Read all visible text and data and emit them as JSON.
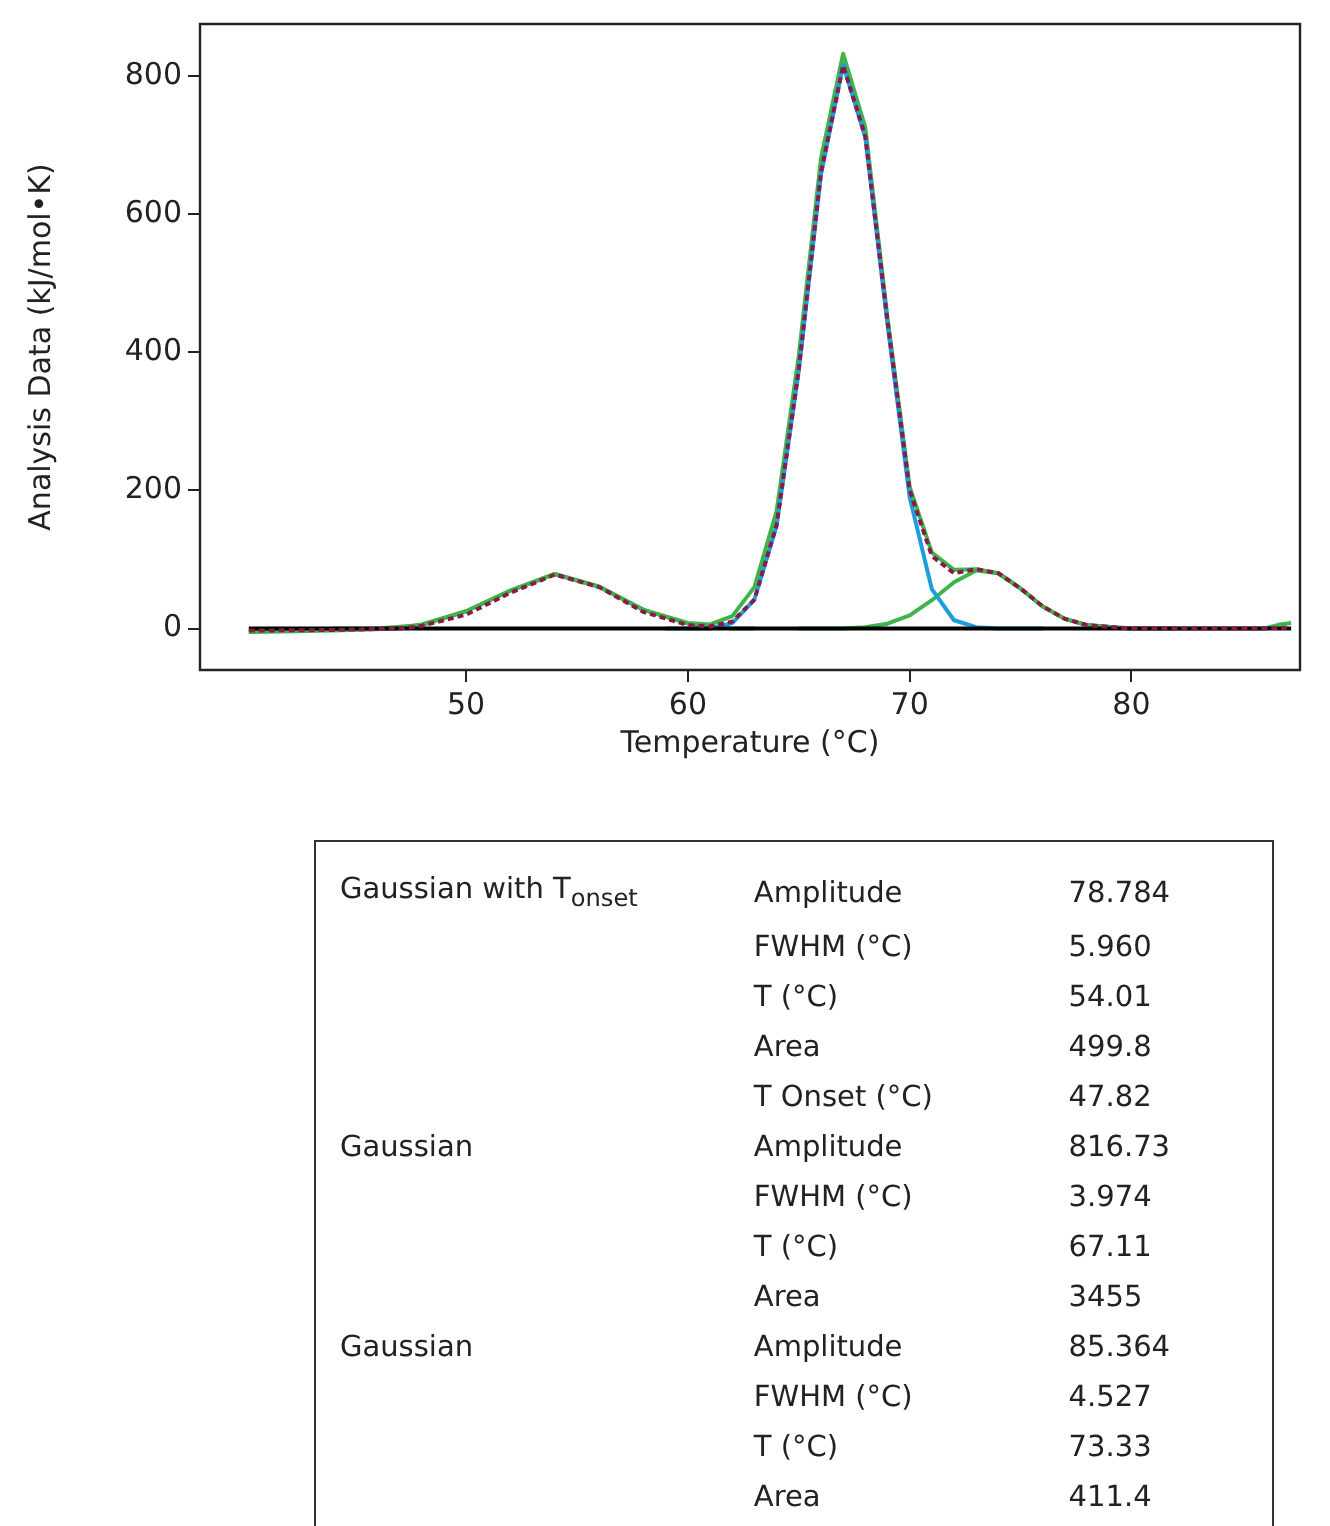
{
  "chart_data": [
    {
      "type": "line",
      "xlabel": "Temperature (°C)",
      "ylabel": "Analysis Data (kJ/mol•K)",
      "xlim": [
        38,
        87.6
      ],
      "ylim": [
        -60,
        875
      ],
      "xticks": [
        50,
        60,
        70,
        80
      ],
      "yticks": [
        0,
        200,
        400,
        600,
        800
      ],
      "marker": "none",
      "line_style": "solid",
      "series": [
        {
          "color": "#000000",
          "x": [
            40.2,
            87.2
          ],
          "values": [
            0,
            0
          ]
        },
        {
          "color": "#1a9fdc",
          "x": [
            59,
            61,
            62,
            63,
            64,
            65,
            66,
            67,
            68,
            69,
            70,
            71,
            72,
            73,
            74,
            76
          ],
          "values": [
            0,
            0,
            8,
            42,
            149,
            373,
            657,
            816,
            711,
            440,
            190,
            57,
            12,
            2,
            0,
            0
          ]
        },
        {
          "color": "#8b1a4a",
          "line_style": "dashed",
          "x": [
            40.2,
            44,
            47,
            48,
            50,
            52,
            54,
            56,
            58,
            60,
            61,
            62,
            63,
            64,
            65,
            66,
            67,
            68,
            69,
            70,
            71,
            72,
            73,
            74,
            75,
            76,
            77,
            78,
            80,
            85,
            87
          ],
          "values": [
            -3,
            -2,
            0,
            4,
            20,
            52,
            78,
            60,
            24,
            5,
            3,
            10,
            42,
            150,
            375,
            660,
            815,
            712,
            445,
            200,
            105,
            80,
            86,
            80,
            58,
            32,
            14,
            5,
            0,
            0,
            1
          ]
        },
        {
          "color": "#3db54a",
          "x": [
            44,
            46,
            48,
            50,
            52,
            54,
            56,
            58,
            60,
            62,
            63
          ],
          "values": [
            0,
            0,
            5,
            25,
            55,
            79,
            60,
            27,
            7,
            0,
            0
          ]
        },
        {
          "color": "#3db54a",
          "x": [
            65,
            67,
            68,
            69,
            70,
            71,
            72,
            73,
            74,
            75,
            76,
            77,
            78,
            79,
            80,
            82
          ],
          "values": [
            0,
            0,
            2,
            7,
            19,
            41,
            67,
            84,
            80,
            58,
            32,
            14,
            5,
            1,
            0,
            0
          ]
        },
        {
          "color": "#3db54a",
          "x": [
            40.2,
            44,
            47,
            48,
            50,
            52,
            54,
            56,
            58,
            60,
            61,
            62,
            63,
            64,
            65,
            66,
            67,
            68,
            69,
            70,
            71,
            72,
            73,
            74,
            75,
            76,
            77,
            78,
            80,
            86,
            86.7,
            87.2
          ],
          "values": [
            -5,
            -3,
            0,
            6,
            25,
            55,
            79,
            61,
            27,
            8,
            6,
            18,
            60,
            170,
            395,
            680,
            832,
            725,
            450,
            205,
            110,
            85,
            86,
            80,
            58,
            32,
            14,
            5,
            0,
            0,
            6,
            8
          ]
        }
      ]
    },
    {
      "type": "other",
      "annotations": [
        "Gaussian with T$_{onset}$\tAmplitude\t78.784",
        "\tFWHM (°C)\t5.960",
        "\tT (°C)\t54.01",
        "\tArea\t499.8",
        "\tT Onset (°C)\t47.82",
        "Gaussian\tAmplitude\t816.73",
        "\tFWHM (°C)\t3.974",
        "\tT (°C)\t67.11",
        "\tArea\t3455",
        "Gaussian\tAmplitude\t85.364",
        "\tFWHM (°C)\t4.527",
        "\tT (°C)\t73.33",
        "\tArea\t411.4"
      ]
    }
  ]
}
